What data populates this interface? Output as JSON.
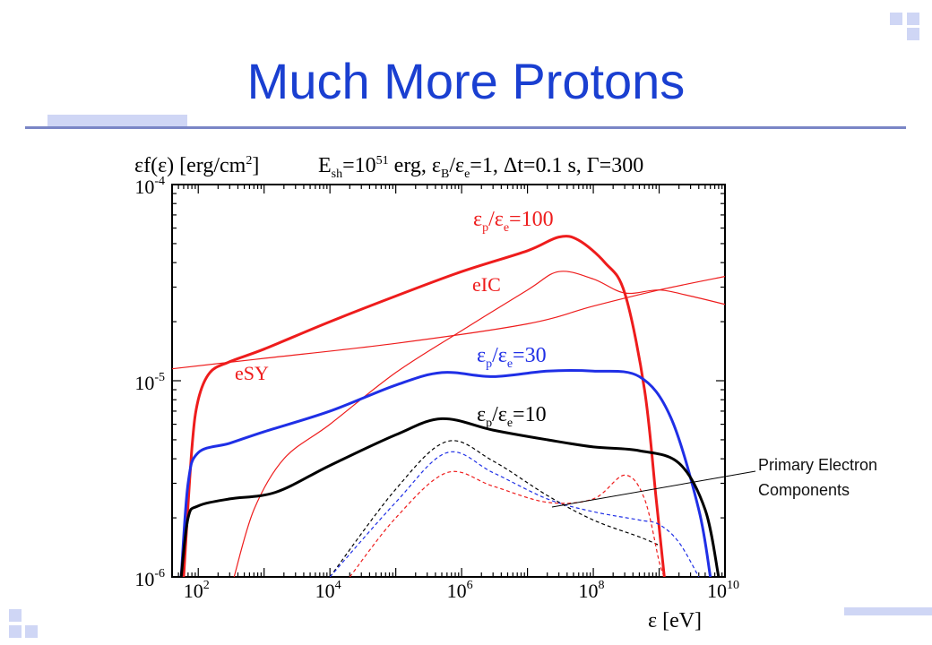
{
  "slide": {
    "title": "Much More Protons",
    "annotation": [
      "Primary Electron",
      "Components"
    ]
  },
  "colors": {
    "title": "#1a3fd1",
    "red": "#ee1c1c",
    "blue": "#1f2fe6",
    "black": "#000000",
    "decoration": "#cfd6f5"
  },
  "chart_data": {
    "type": "line",
    "title": "",
    "ylabel": "εf(ε) [erg/cm²]",
    "xlabel": "ε [eV]",
    "params_label": "E_sh=10^51 erg, ε_B/ε_e=1, Δt=0.1 s, Γ=300",
    "x_scale": "log",
    "y_scale": "log",
    "xlim": [
      40,
      10000000000.0
    ],
    "ylim": [
      1e-06,
      0.0001
    ],
    "x_ticks": [
      "10^2",
      "10^4",
      "10^6",
      "10^8",
      "10^10"
    ],
    "y_ticks": [
      "10^-6",
      "10^-5",
      "10^-4"
    ],
    "series_labels": [
      {
        "name": "εp/εe=100",
        "color": "red"
      },
      {
        "name": "eIC",
        "color": "red"
      },
      {
        "name": "eSY",
        "color": "red"
      },
      {
        "name": "εp/εe=30",
        "color": "blue"
      },
      {
        "name": "εp/εe=10",
        "color": "black"
      }
    ],
    "series": [
      {
        "name": "εp/εe=100",
        "color": "#ee1c1c",
        "width": 3,
        "dash": "",
        "points": [
          [
            60,
            1e-06
          ],
          [
            80,
            4.5e-06
          ],
          [
            100,
            8e-06
          ],
          [
            150,
            1.1e-05
          ],
          [
            300,
            1.25e-05
          ],
          [
            1000,
            1.45e-05
          ],
          [
            10000.0,
            2e-05
          ],
          [
            100000.0,
            2.7e-05
          ],
          [
            1000000.0,
            3.6e-05
          ],
          [
            10000000.0,
            4.6e-05
          ],
          [
            30000000.0,
            5.4e-05
          ],
          [
            60000000.0,
            5.2e-05
          ],
          [
            150000000.0,
            4e-05
          ],
          [
            300000000.0,
            2.8e-05
          ],
          [
            600000000.0,
            9e-06
          ],
          [
            900000000.0,
            2.5e-06
          ],
          [
            1200000000.0,
            1e-06
          ]
        ]
      },
      {
        "name": "eIC",
        "color": "#ee1c1c",
        "width": 1.2,
        "dash": "",
        "points": [
          [
            350,
            1e-06
          ],
          [
            700,
            2.2e-06
          ],
          [
            2000,
            4e-06
          ],
          [
            10000.0,
            6e-06
          ],
          [
            100000.0,
            1.1e-05
          ],
          [
            1000000.0,
            1.8e-05
          ],
          [
            10000000.0,
            2.9e-05
          ],
          [
            30000000.0,
            3.6e-05
          ],
          [
            100000000.0,
            3.3e-05
          ],
          [
            300000000.0,
            2.8e-05
          ],
          [
            1000000000.0,
            2.9e-05
          ],
          [
            3000000000.0,
            2.7e-05
          ],
          [
            10000000000.0,
            2.45e-05
          ]
        ]
      },
      {
        "name": "eSY",
        "color": "#ee1c1c",
        "width": 1.2,
        "dash": "",
        "points": [
          [
            40,
            1.15e-05
          ],
          [
            1000,
            1.3e-05
          ],
          [
            100000.0,
            1.55e-05
          ],
          [
            10000000.0,
            1.95e-05
          ],
          [
            100000000.0,
            2.4e-05
          ],
          [
            1000000000.0,
            2.9e-05
          ],
          [
            10000000000.0,
            3.4e-05
          ]
        ]
      },
      {
        "name": "εp/εe=30",
        "color": "#1f2fe6",
        "width": 3,
        "dash": "",
        "points": [
          [
            55,
            1e-06
          ],
          [
            70,
            3e-06
          ],
          [
            100,
            4.3e-06
          ],
          [
            300,
            4.8e-06
          ],
          [
            1000,
            5.5e-06
          ],
          [
            10000.0,
            7e-06
          ],
          [
            100000.0,
            9.5e-06
          ],
          [
            500000.0,
            1.1e-05
          ],
          [
            3000000.0,
            1.05e-05
          ],
          [
            20000000.0,
            1.12e-05
          ],
          [
            100000000.0,
            1.12e-05
          ],
          [
            500000000.0,
            1.05e-05
          ],
          [
            1500000000.0,
            6.5e-06
          ],
          [
            4000000000.0,
            2.2e-06
          ],
          [
            6000000000.0,
            1e-06
          ]
        ]
      },
      {
        "name": "εp/εe=10",
        "color": "#000000",
        "width": 3,
        "dash": "",
        "points": [
          [
            55,
            1e-06
          ],
          [
            70,
            2e-06
          ],
          [
            100,
            2.3e-06
          ],
          [
            300,
            2.5e-06
          ],
          [
            1500,
            2.7e-06
          ],
          [
            10000.0,
            3.7e-06
          ],
          [
            100000.0,
            5.3e-06
          ],
          [
            500000.0,
            6.4e-06
          ],
          [
            3000000.0,
            5.6e-06
          ],
          [
            20000000.0,
            5e-06
          ],
          [
            100000000.0,
            4.6e-06
          ],
          [
            500000000.0,
            4.4e-06
          ],
          [
            2000000000.0,
            3.8e-06
          ],
          [
            5000000000.0,
            2.2e-06
          ],
          [
            8000000000.0,
            1e-06
          ]
        ]
      },
      {
        "name": "primary black",
        "color": "#000000",
        "width": 1.2,
        "dash": "4 3",
        "points": [
          [
            10000.0,
            1e-06
          ],
          [
            100000.0,
            2.8e-06
          ],
          [
            600000.0,
            4.9e-06
          ],
          [
            3000000.0,
            3.9e-06
          ],
          [
            20000000.0,
            2.6e-06
          ],
          [
            100000000.0,
            1.95e-06
          ],
          [
            500000000.0,
            1.6e-06
          ],
          [
            1000000000.0,
            1.45e-06
          ]
        ]
      },
      {
        "name": "primary blue",
        "color": "#1f2fe6",
        "width": 1.2,
        "dash": "4 3",
        "points": [
          [
            10000.0,
            1e-06
          ],
          [
            100000.0,
            2.4e-06
          ],
          [
            600000.0,
            4.3e-06
          ],
          [
            3000000.0,
            3.4e-06
          ],
          [
            20000000.0,
            2.5e-06
          ],
          [
            100000000.0,
            2.15e-06
          ],
          [
            500000000.0,
            1.95e-06
          ],
          [
            1000000000.0,
            1.85e-06
          ],
          [
            2000000000.0,
            1.5e-06
          ],
          [
            4000000000.0,
            1e-06
          ]
        ]
      },
      {
        "name": "primary red",
        "color": "#ee1c1c",
        "width": 1.2,
        "dash": "4 3",
        "points": [
          [
            20000.0,
            1e-06
          ],
          [
            100000.0,
            2e-06
          ],
          [
            600000.0,
            3.4e-06
          ],
          [
            3000000.0,
            2.9e-06
          ],
          [
            20000000.0,
            2.4e-06
          ],
          [
            100000000.0,
            2.5e-06
          ],
          [
            300000000.0,
            3.3e-06
          ],
          [
            600000000.0,
            2.5e-06
          ],
          [
            1000000000.0,
            1.2e-06
          ],
          [
            1200000000.0,
            1e-06
          ]
        ]
      }
    ]
  }
}
